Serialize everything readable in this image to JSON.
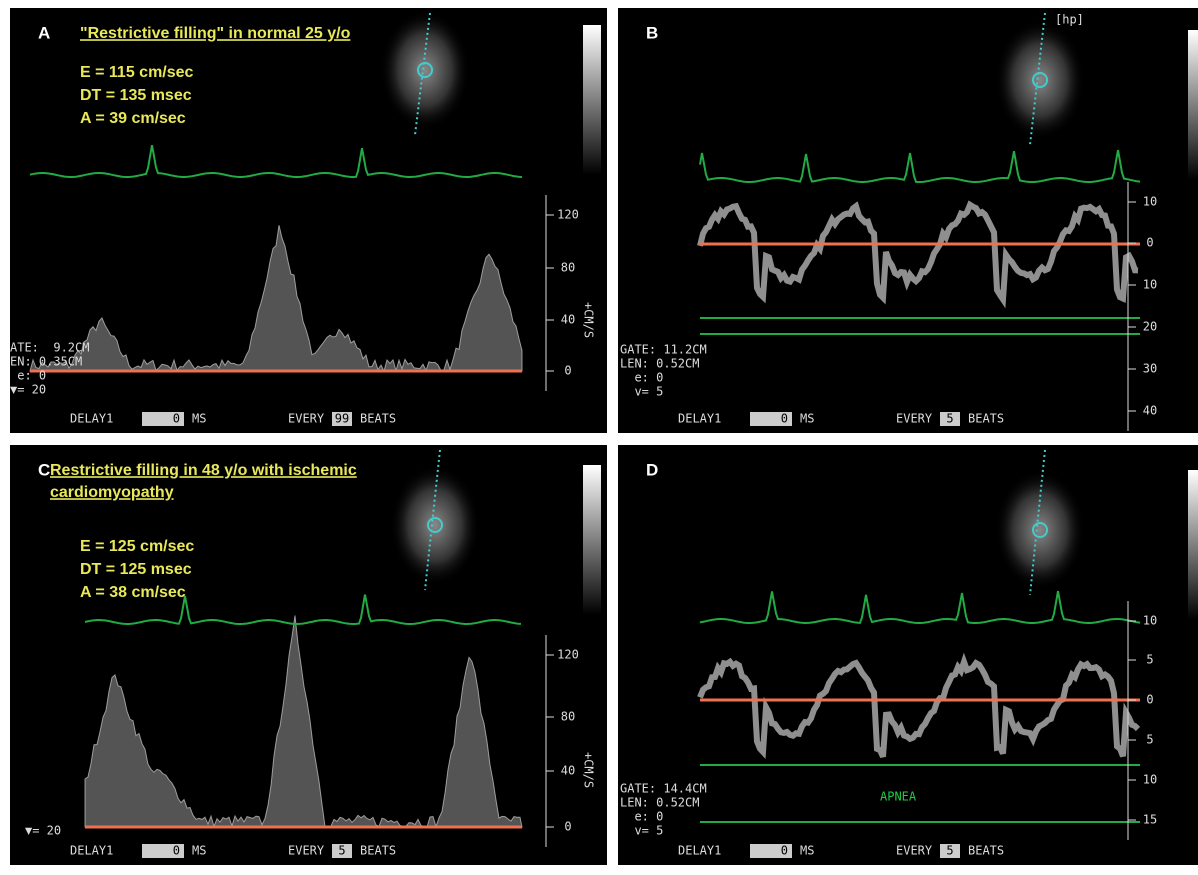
{
  "panels": [
    {
      "letter": "A",
      "title": [
        "\"Restrictive filling\" in normal 25 y/o"
      ],
      "measurements": [
        "E = 115 cm/sec",
        "DT = 135 msec",
        "A = 39 cm/sec"
      ],
      "scale": [
        "120",
        "80",
        "40",
        "0"
      ],
      "unit": "+CM/S",
      "gate": [
        "ATE:  9.2CM",
        "EN: 0.35CM",
        " e: 0",
        "▼= 20"
      ],
      "footer": {
        "delay_label": "DELAY1",
        "delay_value": "0",
        "delay_unit": "MS",
        "every_label": "EVERY",
        "every_value": "99",
        "every_unit": "BEATS"
      }
    },
    {
      "letter": "B",
      "tag": "[hp]",
      "scale": [
        "10",
        "0",
        "10",
        "20",
        "30",
        "40"
      ],
      "gate": [
        "GATE: 11.2CM",
        "LEN: 0.52CM",
        "  e: 0",
        "  v= 5"
      ],
      "footer": {
        "delay_label": "DELAY1",
        "delay_value": "0",
        "delay_unit": "MS",
        "every_label": "EVERY",
        "every_value": "5",
        "every_unit": "BEATS"
      }
    },
    {
      "letter": "C",
      "title": [
        "Restrictive filling in 48 y/o with ischemic",
        "cardiomyopathy"
      ],
      "measurements": [
        "E = 125 cm/sec",
        "DT = 125 msec",
        "A = 38 cm/sec"
      ],
      "scale": [
        "120",
        "80",
        "40",
        "0"
      ],
      "unit": "+CM/S",
      "gate": [
        "▼= 20"
      ],
      "footer": {
        "delay_label": "DELAY1",
        "delay_value": "0",
        "delay_unit": "MS",
        "every_label": "EVERY",
        "every_value": "5",
        "every_unit": "BEATS"
      }
    },
    {
      "letter": "D",
      "note": "APNEA",
      "scale": [
        "10",
        "5",
        "0",
        "5",
        "10",
        "15"
      ],
      "gate": [
        "GATE: 14.4CM",
        "LEN: 0.52CM",
        "  e: 0",
        "  v= 5"
      ],
      "footer": {
        "delay_label": "DELAY1",
        "delay_value": "0",
        "delay_unit": "MS",
        "every_label": "EVERY",
        "every_value": "5",
        "every_unit": "BEATS"
      }
    }
  ]
}
